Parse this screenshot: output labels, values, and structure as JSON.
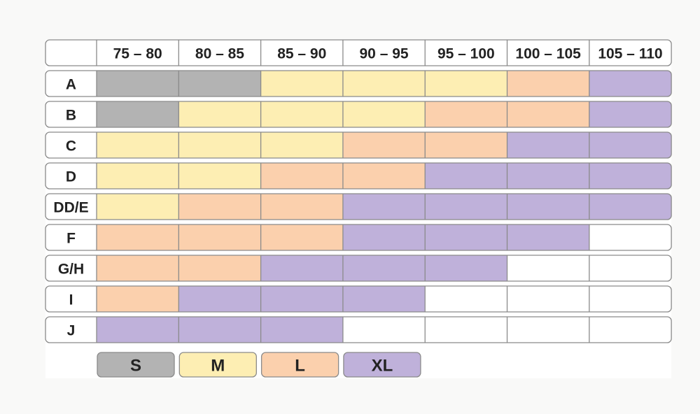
{
  "chart_data": {
    "type": "heatmap",
    "columns": [
      "75 – 80",
      "80 – 85",
      "85 – 90",
      "90 – 95",
      "95 – 100",
      "100 – 105",
      "105 – 110"
    ],
    "rows": [
      "A",
      "B",
      "C",
      "D",
      "DD/E",
      "F",
      "G/H",
      "I",
      "J"
    ],
    "cells": [
      [
        "S",
        "S",
        "M",
        "M",
        "M",
        "L",
        "XL"
      ],
      [
        "S",
        "M",
        "M",
        "M",
        "L",
        "L",
        "XL"
      ],
      [
        "M",
        "M",
        "M",
        "L",
        "L",
        "XL",
        "XL"
      ],
      [
        "M",
        "M",
        "L",
        "L",
        "XL",
        "XL",
        "XL"
      ],
      [
        "M",
        "L",
        "L",
        "XL",
        "XL",
        "XL",
        "XL"
      ],
      [
        "L",
        "L",
        "L",
        "XL",
        "XL",
        "XL",
        ""
      ],
      [
        "L",
        "L",
        "XL",
        "XL",
        "XL",
        "",
        ""
      ],
      [
        "L",
        "XL",
        "XL",
        "XL",
        "",
        "",
        ""
      ],
      [
        "XL",
        "XL",
        "XL",
        "",
        "",
        "",
        ""
      ]
    ],
    "legend": [
      {
        "label": "S",
        "color": "#b3b3b3"
      },
      {
        "label": "M",
        "color": "#fdeeb3"
      },
      {
        "label": "L",
        "color": "#fbd0ad"
      },
      {
        "label": "XL",
        "color": "#bfb1da"
      }
    ],
    "empty_color": "#ffffff"
  }
}
